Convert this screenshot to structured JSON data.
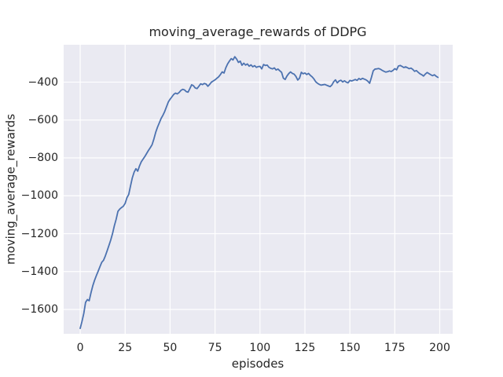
{
  "figure": {
    "background": "#ffffff"
  },
  "chart_data": {
    "type": "line",
    "title": "moving_average_rewards of DDPG",
    "xlabel": "episodes",
    "ylabel": "moving_average_rewards",
    "grid": true,
    "legend": null,
    "xlim": [
      -9.2,
      207.2
    ],
    "ylim": [
      -1728.6,
      -202.8
    ],
    "x_ticks": {
      "values": [
        0,
        25,
        50,
        75,
        100,
        125,
        150,
        175,
        200
      ],
      "labels": [
        "0",
        "25",
        "50",
        "75",
        "100",
        "125",
        "150",
        "175",
        "200"
      ]
    },
    "y_ticks": {
      "values": [
        -400,
        -600,
        -800,
        -1000,
        -1200,
        -1400,
        -1600
      ],
      "labels": [
        "−400",
        "−600",
        "−800",
        "−1000",
        "−1200",
        "−1400",
        "−1600"
      ]
    },
    "style": {
      "axes_background": "#eaeaf2",
      "grid_color": "#ffffff",
      "line_color": "#4c72b0",
      "text_color": "#262626",
      "line_width": 1.8
    },
    "series": [
      {
        "name": "moving_average_rewards",
        "x_start": 0,
        "x_step": 1,
        "values": [
          -1700,
          -1663,
          -1621,
          -1562,
          -1548,
          -1554,
          -1512,
          -1475,
          -1446,
          -1421,
          -1398,
          -1374,
          -1351,
          -1340,
          -1317,
          -1290,
          -1262,
          -1233,
          -1199,
          -1158,
          -1124,
          -1082,
          -1070,
          -1062,
          -1055,
          -1040,
          -1010,
          -993,
          -948,
          -905,
          -875,
          -857,
          -870,
          -842,
          -820,
          -806,
          -792,
          -776,
          -760,
          -746,
          -730,
          -700,
          -665,
          -638,
          -615,
          -592,
          -575,
          -555,
          -530,
          -505,
          -490,
          -478,
          -465,
          -458,
          -462,
          -455,
          -444,
          -438,
          -441,
          -450,
          -453,
          -434,
          -414,
          -419,
          -431,
          -434,
          -422,
          -409,
          -413,
          -407,
          -410,
          -422,
          -412,
          -400,
          -394,
          -388,
          -380,
          -372,
          -360,
          -346,
          -352,
          -324,
          -304,
          -289,
          -276,
          -283,
          -266,
          -278,
          -296,
          -289,
          -311,
          -300,
          -310,
          -304,
          -316,
          -309,
          -319,
          -313,
          -322,
          -318,
          -317,
          -330,
          -307,
          -312,
          -310,
          -322,
          -327,
          -330,
          -325,
          -336,
          -331,
          -340,
          -348,
          -379,
          -386,
          -368,
          -355,
          -346,
          -354,
          -358,
          -370,
          -389,
          -379,
          -348,
          -356,
          -352,
          -360,
          -354,
          -364,
          -372,
          -383,
          -398,
          -406,
          -412,
          -416,
          -414,
          -412,
          -416,
          -420,
          -424,
          -415,
          -398,
          -388,
          -404,
          -394,
          -390,
          -399,
          -393,
          -400,
          -404,
          -391,
          -394,
          -390,
          -386,
          -391,
          -381,
          -386,
          -380,
          -384,
          -388,
          -395,
          -406,
          -375,
          -340,
          -331,
          -330,
          -328,
          -332,
          -338,
          -343,
          -347,
          -345,
          -341,
          -344,
          -338,
          -329,
          -335,
          -315,
          -312,
          -317,
          -323,
          -319,
          -324,
          -329,
          -326,
          -333,
          -343,
          -339,
          -348,
          -356,
          -361,
          -368,
          -357,
          -349,
          -355,
          -361,
          -366,
          -361,
          -369,
          -375
        ]
      }
    ]
  }
}
